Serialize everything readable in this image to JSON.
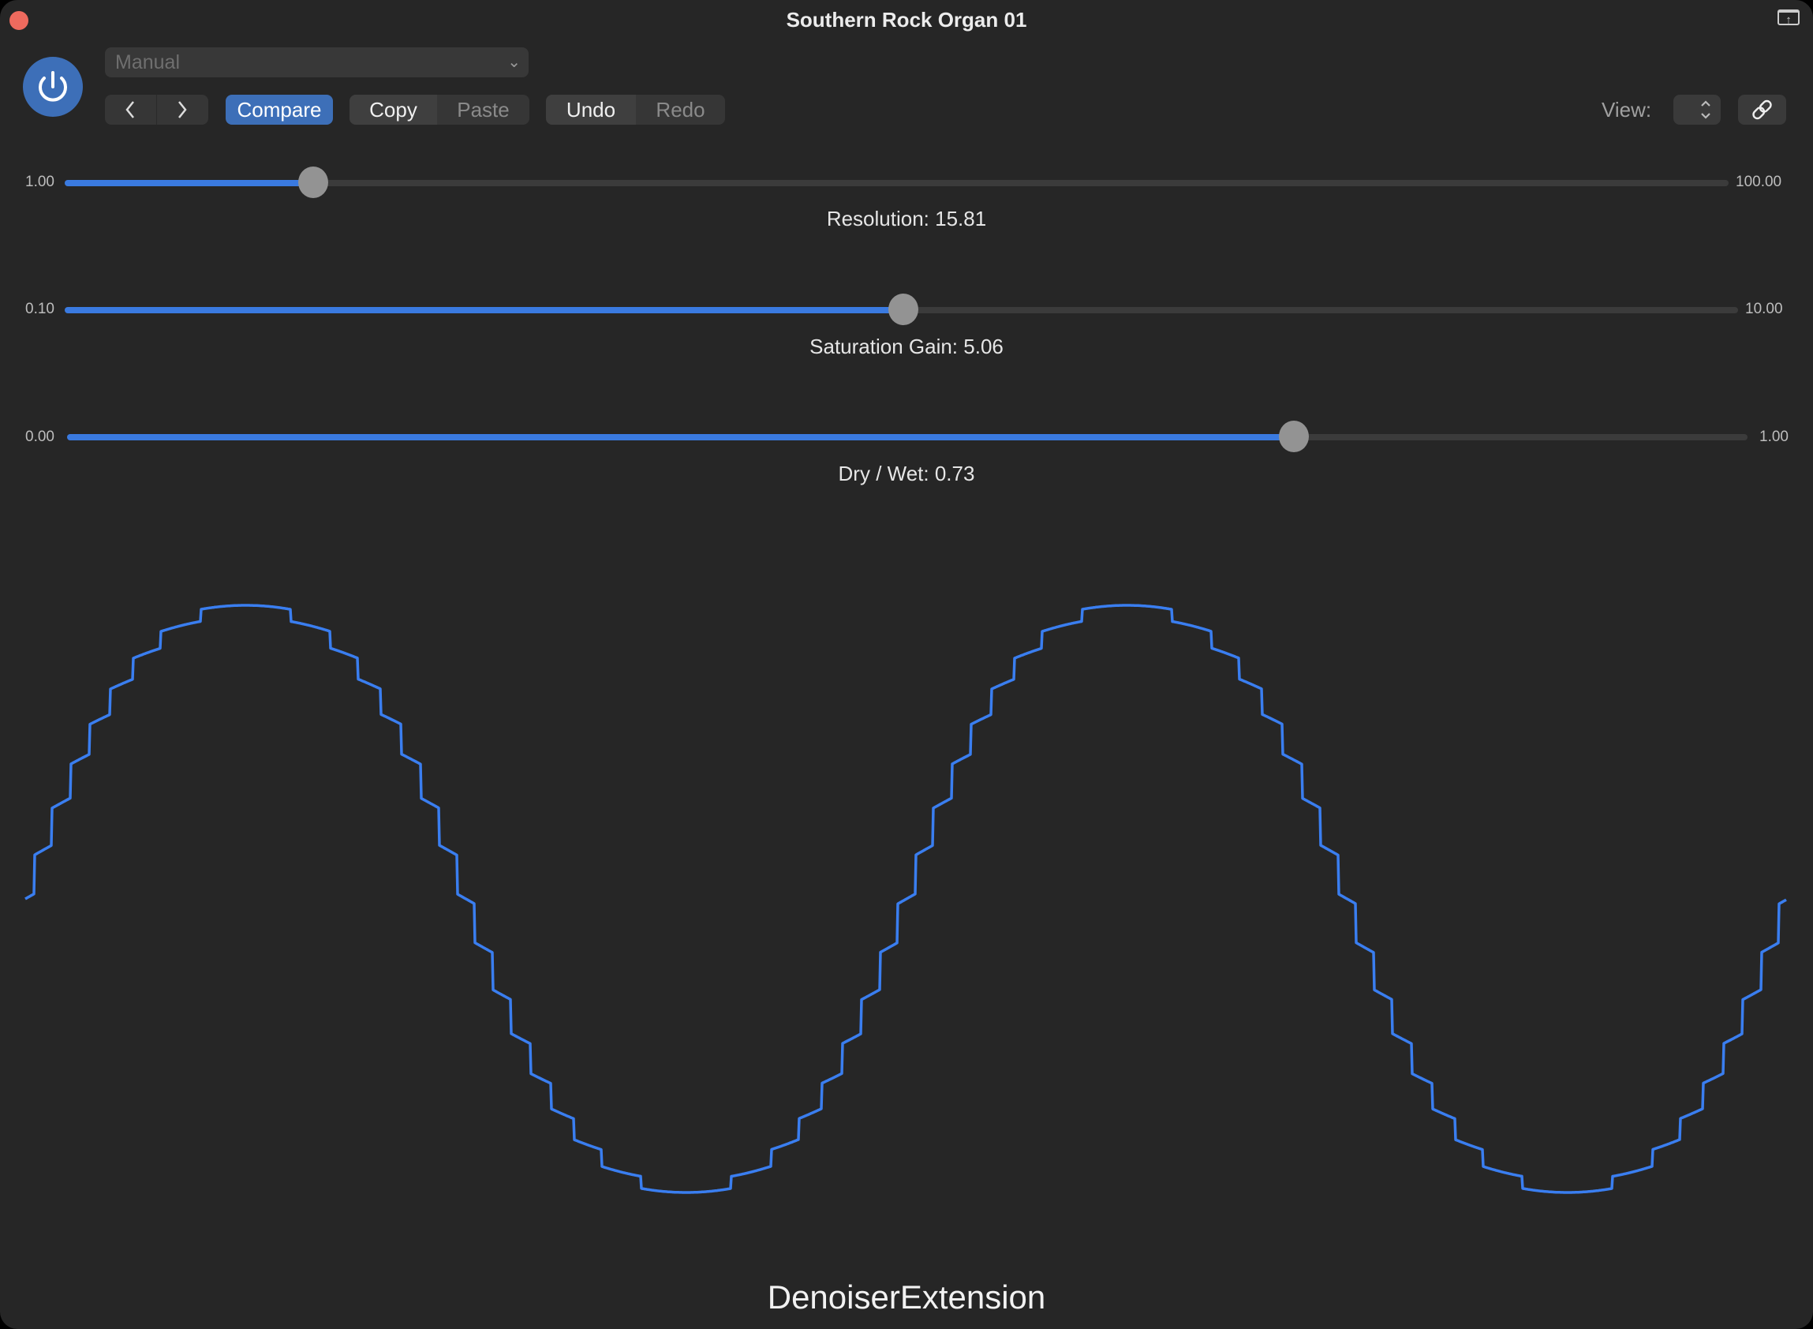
{
  "window": {
    "title": "Southern Rock Organ 01"
  },
  "toolbar": {
    "preset": "Manual",
    "compare_label": "Compare",
    "copy_label": "Copy",
    "paste_label": "Paste",
    "undo_label": "Undo",
    "redo_label": "Redo",
    "view_label": "View:"
  },
  "params": [
    {
      "label": "Resolution: 15.81",
      "min": "1.00",
      "max": "100.00",
      "value": 15.81,
      "min_value": 1,
      "max_value": 100
    },
    {
      "label": "Saturation Gain: 5.06",
      "min": "0.10",
      "max": "10.00",
      "value": 5.06,
      "min_value": 0.1,
      "max_value": 10
    },
    {
      "label": "Dry / Wet: 0.73",
      "min": "0.00",
      "max": "1.00",
      "value": 0.73,
      "min_value": 0,
      "max_value": 1
    }
  ],
  "footer": {
    "name": "DenoiserExtension"
  },
  "colors": {
    "accent": "#3d6fb8",
    "waveform": "#3a7ef0",
    "background": "#262626"
  }
}
